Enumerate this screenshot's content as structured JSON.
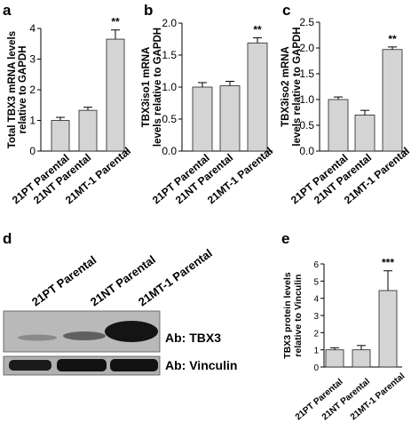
{
  "panels": {
    "a": {
      "letter": "a"
    },
    "b": {
      "letter": "b"
    },
    "c": {
      "letter": "c"
    },
    "d": {
      "letter": "d",
      "lanes": [
        "21PT Parental",
        "21NT Parental",
        "21MT-1 Parental"
      ],
      "blot_labels": [
        "Ab: TBX3",
        "Ab: Vinculin"
      ]
    },
    "e": {
      "letter": "e"
    }
  },
  "colors": {
    "bar_fill": "#d4d4d4",
    "bar_stroke": "#222222",
    "blot_bg": "#b8b8b8",
    "band": "#141414"
  },
  "chart_data": [
    {
      "id": "a",
      "type": "bar",
      "categories": [
        "21PT Parental",
        "21NT Parental",
        "21MT-1 Parental"
      ],
      "values": [
        1.0,
        1.33,
        3.65
      ],
      "errors": [
        0.1,
        0.1,
        0.3
      ],
      "annotations": [
        "",
        "",
        "**"
      ],
      "ylabel": "Total TBX3 mRNA levels relative to GAPDH",
      "ylim": [
        0,
        4
      ],
      "yticks": [
        0,
        1,
        2,
        3,
        4
      ],
      "tick_labels": [
        "0",
        "1",
        "2",
        "3",
        "4"
      ]
    },
    {
      "id": "b",
      "type": "bar",
      "categories": [
        "21PT Parental",
        "21NT Parental",
        "21MT-1 Parental"
      ],
      "values": [
        1.0,
        1.02,
        1.69
      ],
      "errors": [
        0.07,
        0.07,
        0.08
      ],
      "annotations": [
        "",
        "",
        "**"
      ],
      "ylabel": "TBX3iso1 mRNA levels relative to GAPDH",
      "ylim": [
        0,
        2
      ],
      "yticks": [
        0,
        0.5,
        1,
        1.5,
        2
      ],
      "tick_labels": [
        "0.0",
        "0.5",
        "1.0",
        "1.5",
        "2.0"
      ]
    },
    {
      "id": "c",
      "type": "bar",
      "categories": [
        "21PT Parental",
        "21NT Parental",
        "21MT-1 Parental"
      ],
      "values": [
        1.0,
        0.7,
        1.97
      ],
      "errors": [
        0.05,
        0.09,
        0.05
      ],
      "annotations": [
        "",
        "",
        "**"
      ],
      "ylabel": "TBX3iso2 mRNA levels relative to GAPDH",
      "ylim": [
        0,
        2.5
      ],
      "yticks": [
        0,
        0.5,
        1,
        1.5,
        2,
        2.5
      ],
      "tick_labels": [
        "0.0",
        "0.5",
        "1.0",
        "1.5",
        "2.0",
        "2.5"
      ]
    },
    {
      "id": "e",
      "type": "bar",
      "categories": [
        "21PT Parental",
        "21NT Parental",
        "21MT-1 Parental"
      ],
      "values": [
        1.0,
        1.0,
        4.45
      ],
      "errors": [
        0.12,
        0.25,
        1.15
      ],
      "annotations": [
        "",
        "",
        "***"
      ],
      "ylabel": "TBX3 protein levels relative to Vinculin",
      "ylim": [
        0,
        6
      ],
      "yticks": [
        0,
        1,
        2,
        3,
        4,
        5,
        6
      ],
      "tick_labels": [
        "0",
        "1",
        "2",
        "3",
        "4",
        "5",
        "6"
      ]
    }
  ]
}
